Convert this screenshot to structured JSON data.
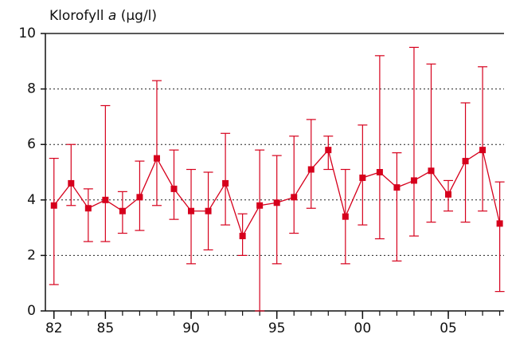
{
  "chart_data": {
    "type": "errorbar-line",
    "title_parts": [
      "Klorofyll",
      "a",
      "(µg/l)"
    ],
    "x": [
      1982,
      1983,
      1984,
      1985,
      1986,
      1987,
      1988,
      1989,
      1990,
      1991,
      1992,
      1993,
      1994,
      1995,
      1996,
      1997,
      1998,
      1999,
      2000,
      2001,
      2002,
      2003,
      2004,
      2005,
      2006,
      2007,
      2008
    ],
    "series": [
      {
        "color": "#d6001c",
        "values": [
          3.8,
          4.6,
          3.7,
          4.0,
          3.6,
          4.1,
          5.5,
          4.4,
          3.6,
          3.6,
          4.6,
          2.7,
          3.8,
          3.9,
          4.1,
          5.1,
          5.8,
          3.4,
          4.8,
          5.0,
          4.45,
          4.7,
          5.05,
          4.2,
          5.4,
          5.8,
          3.15
        ],
        "low": [
          0.95,
          3.8,
          2.5,
          2.5,
          2.8,
          2.9,
          3.8,
          3.3,
          1.7,
          2.2,
          3.1,
          2.0,
          0,
          1.7,
          2.8,
          3.7,
          5.1,
          1.7,
          3.1,
          2.6,
          1.8,
          2.7,
          3.2,
          3.6,
          3.2,
          3.6,
          0.7
        ],
        "high": [
          5.5,
          6.0,
          4.4,
          7.4,
          4.3,
          5.4,
          8.3,
          5.8,
          5.1,
          5.0,
          6.4,
          3.5,
          5.8,
          5.6,
          6.3,
          6.9,
          6.3,
          5.1,
          6.7,
          9.2,
          5.7,
          9.5,
          8.9,
          4.7,
          7.5,
          8.8,
          4.65
        ]
      }
    ],
    "xlim": [
      1981.5,
      2008.25
    ],
    "xticks": [
      {
        "value": 1982,
        "label": "82"
      },
      {
        "value": 1985,
        "label": "85"
      },
      {
        "value": 1990,
        "label": "90"
      },
      {
        "value": 1995,
        "label": "95"
      },
      {
        "value": 2000,
        "label": "00"
      },
      {
        "value": 2005,
        "label": "05"
      }
    ],
    "xminor": [
      1982,
      1983,
      1984,
      1985,
      1986,
      1987,
      1988,
      1989,
      1990,
      1991,
      1992,
      1993,
      1994,
      1995,
      1996,
      1997,
      1998,
      1999,
      2000,
      2001,
      2002,
      2003,
      2004,
      2005,
      2006,
      2007,
      2008
    ],
    "ylim": [
      0,
      10
    ],
    "yticks": [
      0,
      2,
      4,
      6,
      8,
      10
    ],
    "grid": true
  }
}
